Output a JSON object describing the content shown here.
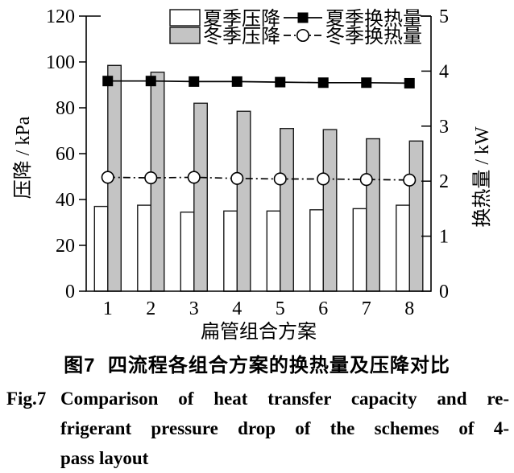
{
  "figure": {
    "caption_cn": "图7  四流程各组合方案的换热量及压降对比",
    "caption_en_label": "Fig.7",
    "caption_en_lines": [
      "Comparison of heat transfer capacity and re-",
      "frigerant pressure drop of the schemes of 4-",
      "pass layout"
    ]
  },
  "colors": {
    "bar_white": "#ffffff",
    "bar_gray": "#c4c4c4",
    "bar_stroke": "#1a1a1a",
    "axis_stroke": "#000000",
    "text": "#000000"
  },
  "chart_data": {
    "type": "bar",
    "subtype": "bar-line-combo-dual-axis",
    "categories": [
      "1",
      "2",
      "3",
      "4",
      "5",
      "6",
      "7",
      "8"
    ],
    "xlabel": "扁管组合方案",
    "ylabel_left": "压降 / kPa",
    "ylabel_right": "换热量 / kW",
    "ylim_left": [
      0,
      120
    ],
    "ylim_right": [
      0,
      5
    ],
    "left_ticks": [
      0,
      20,
      40,
      60,
      80,
      100,
      120
    ],
    "right_ticks": [
      0,
      1,
      2,
      3,
      4,
      5
    ],
    "grid": false,
    "legend_position": "top-center-inside",
    "series": [
      {
        "key": "summer-pressure-drop",
        "name": "夏季压降",
        "kind": "bar",
        "axis": "left",
        "fill": "#ffffff",
        "values": [
          37,
          37.5,
          34.5,
          35,
          35,
          35.5,
          36,
          37.5
        ]
      },
      {
        "key": "winter-pressure-drop",
        "name": "冬季压降",
        "kind": "bar",
        "axis": "left",
        "fill": "#c4c4c4",
        "values": [
          98.5,
          95.5,
          82,
          78.5,
          71,
          70.5,
          66.5,
          65.5
        ]
      },
      {
        "key": "summer-heat-transfer",
        "name": "夏季换热量",
        "kind": "line",
        "axis": "right",
        "marker": "filled-square",
        "dash": "solid",
        "values": [
          3.82,
          3.82,
          3.81,
          3.81,
          3.8,
          3.79,
          3.79,
          3.78
        ]
      },
      {
        "key": "winter-heat-transfer",
        "name": "冬季换热量",
        "kind": "line",
        "axis": "right",
        "marker": "open-circle",
        "dash": "dash-dot",
        "values": [
          2.07,
          2.06,
          2.07,
          2.05,
          2.04,
          2.04,
          2.03,
          2.02
        ]
      }
    ]
  }
}
